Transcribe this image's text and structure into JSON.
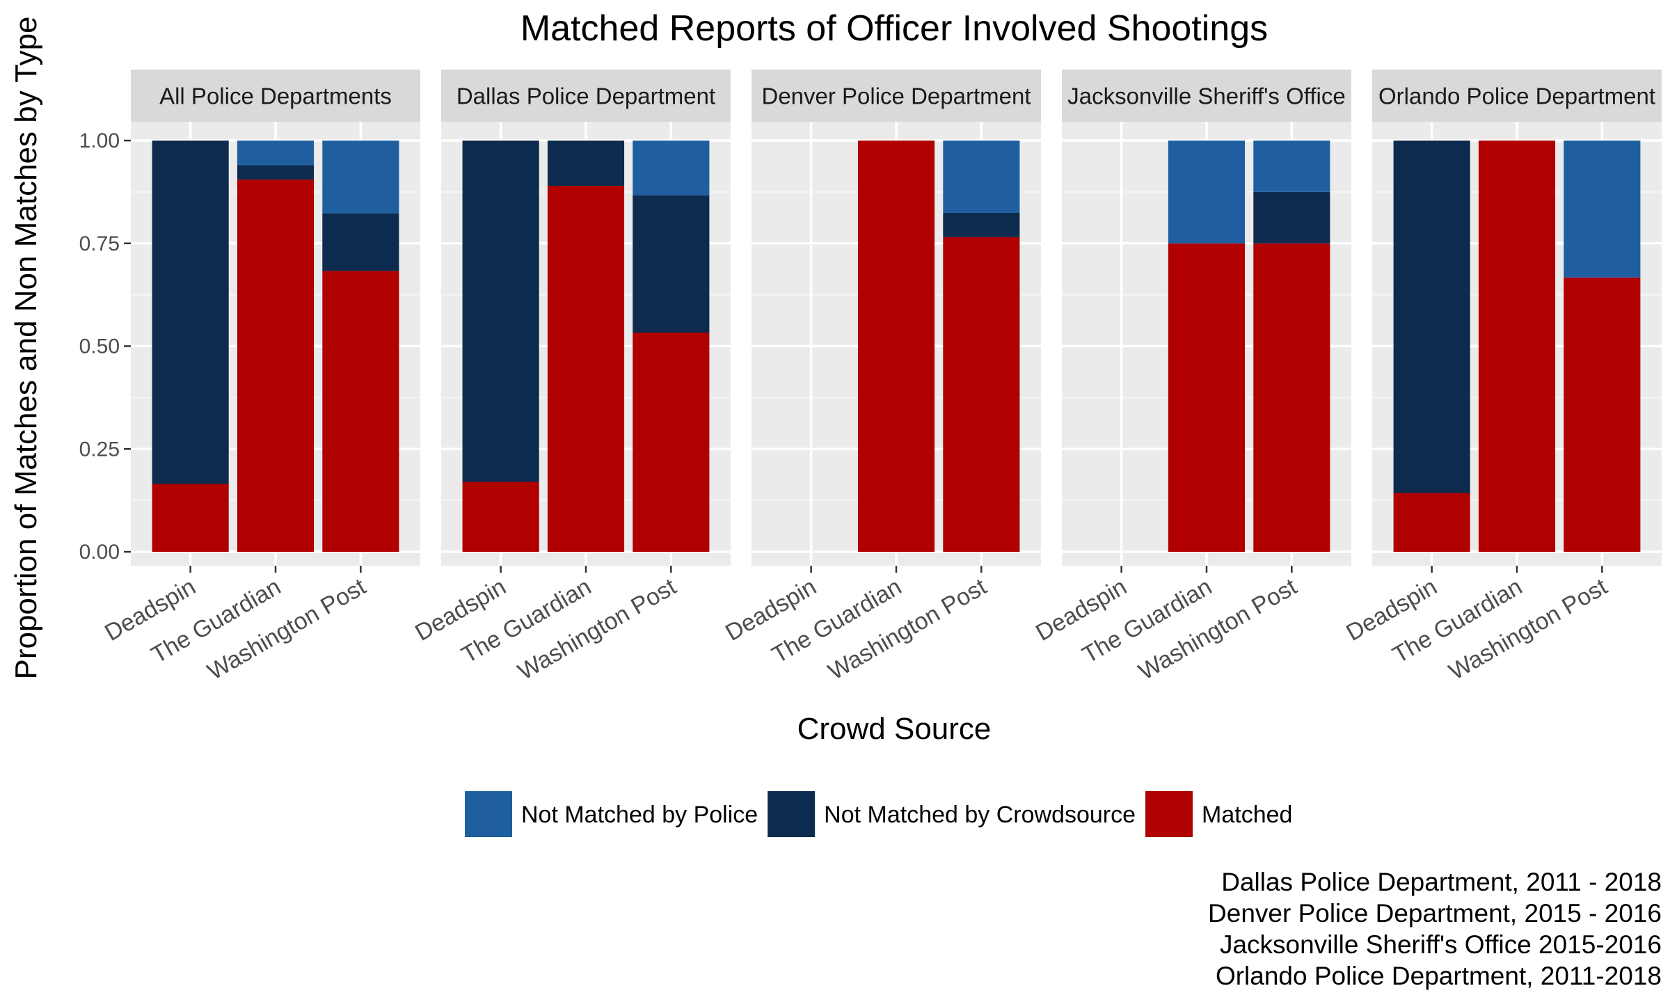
{
  "chart_data": {
    "type": "bar",
    "stacked": true,
    "title": "Matched Reports of Officer Involved Shootings",
    "xlabel": "Crowd Source",
    "ylabel": "Proportion of Matches and Non Matches by Type",
    "ylim": [
      0,
      1
    ],
    "yticks": [
      "0.00",
      "0.25",
      "0.50",
      "0.75",
      "1.00"
    ],
    "categories": [
      "Deadspin",
      "The Guardian",
      "Washington Post"
    ],
    "series_names": [
      "Not Matched by Police",
      "Not Matched by Crowdsource",
      "Matched"
    ],
    "colors": {
      "Not Matched by Police": "#1f5fa0",
      "Not Matched by Crowdsource": "#0d2b4e",
      "Matched": "#b00000"
    },
    "grid": true,
    "legend_position": "bottom",
    "panels": [
      {
        "label": "All Police Departments",
        "stacks": [
          {
            "category": "Deadspin",
            "Matched": 0.165,
            "Not Matched by Crowdsource": 0.835,
            "Not Matched by Police": 0.0
          },
          {
            "category": "The Guardian",
            "Matched": 0.905,
            "Not Matched by Crowdsource": 0.035,
            "Not Matched by Police": 0.06
          },
          {
            "category": "Washington Post",
            "Matched": 0.683,
            "Not Matched by Crowdsource": 0.14,
            "Not Matched by Police": 0.177
          }
        ]
      },
      {
        "label": "Dallas Police Department",
        "stacks": [
          {
            "category": "Deadspin",
            "Matched": 0.17,
            "Not Matched by Crowdsource": 0.83,
            "Not Matched by Police": 0.0
          },
          {
            "category": "The Guardian",
            "Matched": 0.89,
            "Not Matched by Crowdsource": 0.11,
            "Not Matched by Police": 0.0
          },
          {
            "category": "Washington Post",
            "Matched": 0.533,
            "Not Matched by Crowdsource": 0.334,
            "Not Matched by Police": 0.133
          }
        ]
      },
      {
        "label": "Denver Police Department",
        "stacks": [
          {
            "category": "Deadspin",
            "Matched": 0.0,
            "Not Matched by Crowdsource": 0.0,
            "Not Matched by Police": 0.0
          },
          {
            "category": "The Guardian",
            "Matched": 1.0,
            "Not Matched by Crowdsource": 0.0,
            "Not Matched by Police": 0.0
          },
          {
            "category": "Washington Post",
            "Matched": 0.765,
            "Not Matched by Crowdsource": 0.059,
            "Not Matched by Police": 0.176
          }
        ]
      },
      {
        "label": "Jacksonville Sheriff's Office",
        "stacks": [
          {
            "category": "Deadspin",
            "Matched": 0.0,
            "Not Matched by Crowdsource": 0.0,
            "Not Matched by Police": 0.0
          },
          {
            "category": "The Guardian",
            "Matched": 0.75,
            "Not Matched by Crowdsource": 0.0,
            "Not Matched by Police": 0.25
          },
          {
            "category": "Washington Post",
            "Matched": 0.75,
            "Not Matched by Crowdsource": 0.125,
            "Not Matched by Police": 0.125
          }
        ]
      },
      {
        "label": "Orlando Police Department",
        "stacks": [
          {
            "category": "Deadspin",
            "Matched": 0.143,
            "Not Matched by Crowdsource": 0.857,
            "Not Matched by Police": 0.0
          },
          {
            "category": "The Guardian",
            "Matched": 1.0,
            "Not Matched by Crowdsource": 0.0,
            "Not Matched by Police": 0.0
          },
          {
            "category": "Washington Post",
            "Matched": 0.667,
            "Not Matched by Crowdsource": 0.0,
            "Not Matched by Police": 0.333
          }
        ]
      }
    ],
    "caption_lines": [
      "Dallas Police Department, 2011 - 2018",
      "Denver Police Department, 2015 - 2016",
      "Jacksonville Sheriff's Office 2015-2016",
      "Orlando Police Department, 2011-2018"
    ]
  }
}
